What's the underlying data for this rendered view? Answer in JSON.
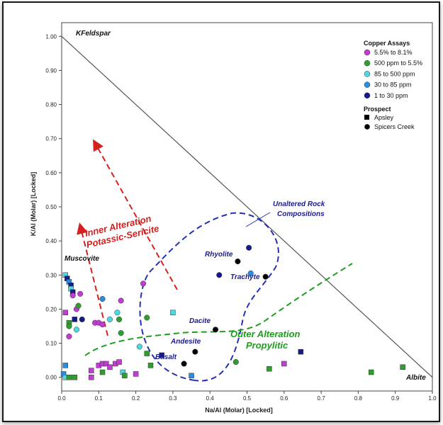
{
  "chart_data": {
    "type": "scatter",
    "xlabel": "Na/Al (Molar) [Locked]",
    "ylabel": "K/Al (Molar) [Locked]",
    "xlim": [
      0,
      1.0
    ],
    "ylim": [
      -0.04,
      1.04
    ],
    "x_ticks": [
      "0.0",
      "0.1",
      "0.2",
      "0.3",
      "0.4",
      "0.5",
      "0.6",
      "0.7",
      "0.8",
      "0.9",
      "1.0"
    ],
    "y_ticks": [
      "0.00",
      "0.10",
      "0.20",
      "0.30",
      "0.40",
      "0.50",
      "0.60",
      "0.70",
      "0.80",
      "0.90",
      "1.00"
    ],
    "grid": false,
    "legend_position": "top-right",
    "legend": {
      "assay_title": "Copper Assays",
      "prospect_title": "Prospect",
      "assays": [
        {
          "key": "a1",
          "label": "5.5% to 8.1%",
          "color": "#c23bd4"
        },
        {
          "key": "a2",
          "label": "500 ppm to 5.5%",
          "color": "#2e9e2e"
        },
        {
          "key": "a3",
          "label": "85 to 500 ppm",
          "color": "#4fd8e0"
        },
        {
          "key": "a4",
          "label": "30 to 85 ppm",
          "color": "#2a8ee0"
        },
        {
          "key": "a5",
          "label": "1 to 30 ppm",
          "color": "#141a8a"
        }
      ],
      "prospects": [
        {
          "key": "sq",
          "label": "Apsley",
          "marker": "square"
        },
        {
          "key": "ci",
          "label": "Spicers Creek",
          "marker": "circle"
        }
      ]
    },
    "reference_lines": [
      {
        "name": "KFeldspar-Albite join",
        "x": [
          0,
          1.0
        ],
        "y": [
          1.0,
          0
        ],
        "color": "#555555"
      }
    ],
    "annotations": {
      "kfeldspar": "KFeldspar",
      "albite": "Albite",
      "muscovite": "Muscovite",
      "unaltered_1": "Unaltered Rock",
      "unaltered_2": "Compositions",
      "rhyolite": "Rhyolite",
      "trachyte": "Trachyte",
      "dacite": "Dacite",
      "andesite": "Andesite",
      "basalt": "Basalt",
      "inner_1": "Inner Alteration",
      "inner_2": "Potassic-Sericite",
      "outer_1": "Outer Alteration",
      "outer_2": "Propylitic"
    },
    "points": [
      {
        "x": 0.01,
        "y": 0.3,
        "m": "sq",
        "c": "a3"
      },
      {
        "x": 0.015,
        "y": 0.29,
        "m": "sq",
        "c": "a5"
      },
      {
        "x": 0.02,
        "y": 0.28,
        "m": "sq",
        "c": "a4"
      },
      {
        "x": 0.025,
        "y": 0.27,
        "m": "sq",
        "c": "a5"
      },
      {
        "x": 0.025,
        "y": 0.26,
        "m": "sq",
        "c": "a3"
      },
      {
        "x": 0.03,
        "y": 0.25,
        "m": "sq",
        "c": "a5"
      },
      {
        "x": 0.03,
        "y": 0.24,
        "m": "ci",
        "c": "a1"
      },
      {
        "x": 0.05,
        "y": 0.245,
        "m": "ci",
        "c": "a1"
      },
      {
        "x": 0.04,
        "y": 0.2,
        "m": "ci",
        "c": "a1"
      },
      {
        "x": 0.045,
        "y": 0.21,
        "m": "ci",
        "c": "a2"
      },
      {
        "x": 0.01,
        "y": 0.19,
        "m": "sq",
        "c": "a1"
      },
      {
        "x": 0.02,
        "y": 0.16,
        "m": "sq",
        "c": "a2"
      },
      {
        "x": 0.02,
        "y": 0.15,
        "m": "ci",
        "c": "a2"
      },
      {
        "x": 0.035,
        "y": 0.17,
        "m": "sq",
        "c": "a5"
      },
      {
        "x": 0.055,
        "y": 0.17,
        "m": "ci",
        "c": "a5"
      },
      {
        "x": 0.04,
        "y": 0.14,
        "m": "ci",
        "c": "a3"
      },
      {
        "x": 0.02,
        "y": 0.12,
        "m": "ci",
        "c": "a1"
      },
      {
        "x": 0.09,
        "y": 0.16,
        "m": "ci",
        "c": "a1"
      },
      {
        "x": 0.1,
        "y": 0.16,
        "m": "ci",
        "c": "a1"
      },
      {
        "x": 0.11,
        "y": 0.155,
        "m": "ci",
        "c": "a1"
      },
      {
        "x": 0.11,
        "y": 0.23,
        "m": "ci",
        "c": "a4"
      },
      {
        "x": 0.13,
        "y": 0.17,
        "m": "ci",
        "c": "a3"
      },
      {
        "x": 0.15,
        "y": 0.19,
        "m": "ci",
        "c": "a3"
      },
      {
        "x": 0.16,
        "y": 0.225,
        "m": "ci",
        "c": "a1"
      },
      {
        "x": 0.155,
        "y": 0.17,
        "m": "ci",
        "c": "a2"
      },
      {
        "x": 0.16,
        "y": 0.13,
        "m": "ci",
        "c": "a2"
      },
      {
        "x": 0.23,
        "y": 0.175,
        "m": "ci",
        "c": "a2"
      },
      {
        "x": 0.22,
        "y": 0.275,
        "m": "ci",
        "c": "a1"
      },
      {
        "x": 0.3,
        "y": 0.19,
        "m": "sq",
        "c": "a3"
      },
      {
        "x": 0.21,
        "y": 0.09,
        "m": "ci",
        "c": "a3"
      },
      {
        "x": 0.01,
        "y": 0.035,
        "m": "sq",
        "c": "a4"
      },
      {
        "x": 0.005,
        "y": 0.01,
        "m": "sq",
        "c": "a4"
      },
      {
        "x": 0.01,
        "y": 0.0,
        "m": "sq",
        "c": "a3"
      },
      {
        "x": 0.02,
        "y": 0.0,
        "m": "sq",
        "c": "a2"
      },
      {
        "x": 0.035,
        "y": 0.0,
        "m": "sq",
        "c": "a2"
      },
      {
        "x": 0.08,
        "y": 0.0,
        "m": "sq",
        "c": "a1"
      },
      {
        "x": 0.08,
        "y": 0.02,
        "m": "sq",
        "c": "a1"
      },
      {
        "x": 0.1,
        "y": 0.035,
        "m": "sq",
        "c": "a1"
      },
      {
        "x": 0.11,
        "y": 0.04,
        "m": "sq",
        "c": "a1"
      },
      {
        "x": 0.12,
        "y": 0.04,
        "m": "sq",
        "c": "a1"
      },
      {
        "x": 0.11,
        "y": 0.015,
        "m": "sq",
        "c": "a2"
      },
      {
        "x": 0.13,
        "y": 0.03,
        "m": "sq",
        "c": "a1"
      },
      {
        "x": 0.145,
        "y": 0.04,
        "m": "sq",
        "c": "a1"
      },
      {
        "x": 0.155,
        "y": 0.045,
        "m": "sq",
        "c": "a1"
      },
      {
        "x": 0.165,
        "y": 0.015,
        "m": "sq",
        "c": "a3"
      },
      {
        "x": 0.17,
        "y": 0.005,
        "m": "sq",
        "c": "a2"
      },
      {
        "x": 0.2,
        "y": 0.01,
        "m": "sq",
        "c": "a1"
      },
      {
        "x": 0.24,
        "y": 0.035,
        "m": "sq",
        "c": "a2"
      },
      {
        "x": 0.23,
        "y": 0.07,
        "m": "sq",
        "c": "a2"
      },
      {
        "x": 0.27,
        "y": 0.065,
        "m": "sq",
        "c": "a5"
      },
      {
        "x": 0.35,
        "y": 0.005,
        "m": "sq",
        "c": "a4"
      },
      {
        "x": 0.56,
        "y": 0.025,
        "m": "sq",
        "c": "a2"
      },
      {
        "x": 0.6,
        "y": 0.04,
        "m": "sq",
        "c": "a1"
      },
      {
        "x": 0.645,
        "y": 0.075,
        "m": "sq",
        "c": "a5"
      },
      {
        "x": 0.835,
        "y": 0.015,
        "m": "sq",
        "c": "a2"
      },
      {
        "x": 0.92,
        "y": 0.03,
        "m": "sq",
        "c": "a2"
      },
      {
        "x": 0.47,
        "y": 0.045,
        "m": "ci",
        "c": "a2"
      },
      {
        "x": 0.33,
        "y": 0.04,
        "m": "ci",
        "c": "b"
      },
      {
        "x": 0.36,
        "y": 0.075,
        "m": "ci",
        "c": "b"
      },
      {
        "x": 0.415,
        "y": 0.14,
        "m": "ci",
        "c": "b"
      },
      {
        "x": 0.475,
        "y": 0.34,
        "m": "ci",
        "c": "b"
      },
      {
        "x": 0.55,
        "y": 0.295,
        "m": "ci",
        "c": "b"
      },
      {
        "x": 0.505,
        "y": 0.38,
        "m": "ci",
        "c": "a5"
      },
      {
        "x": 0.425,
        "y": 0.3,
        "m": "ci",
        "c": "a5"
      },
      {
        "x": 0.51,
        "y": 0.305,
        "m": "ci",
        "c": "a4"
      }
    ]
  }
}
